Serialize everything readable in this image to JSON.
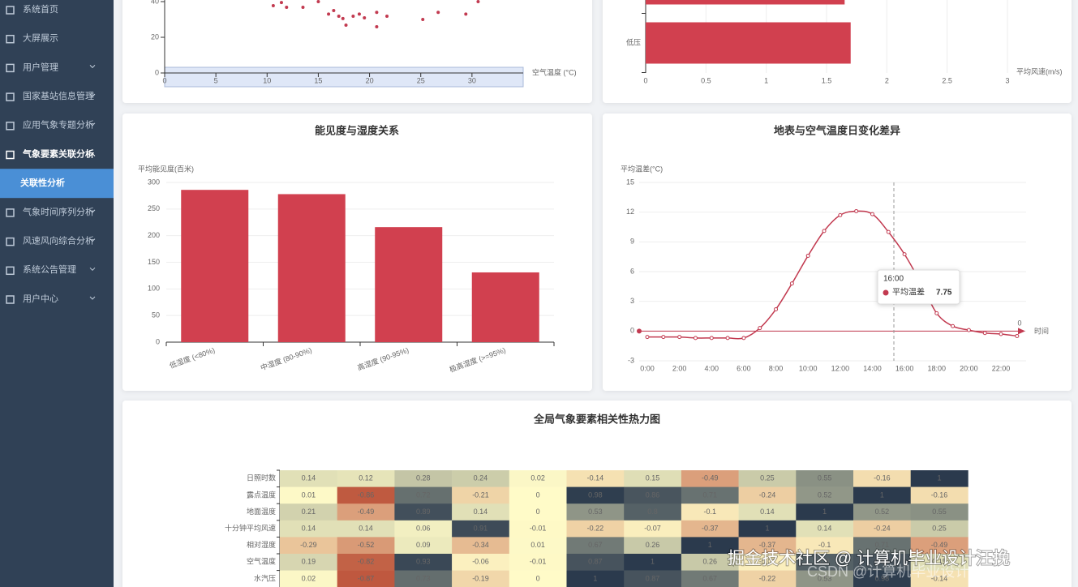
{
  "sidebar": {
    "menu": [
      {
        "label": "系统首页"
      },
      {
        "label": "大屏展示"
      },
      {
        "label": "用户管理",
        "arrow": true
      },
      {
        "label": "国家基站信息管理",
        "arrow": true
      },
      {
        "label": "应用气象专题分析",
        "arrow": true
      },
      {
        "label": "气象要素关联分析",
        "arrow": true,
        "open": true
      },
      {
        "label": "关联性分析",
        "sub": true,
        "active": true
      },
      {
        "label": "气象时间序列分析",
        "arrow": true
      },
      {
        "label": "风速风向综合分析",
        "arrow": true
      },
      {
        "label": "系统公告管理",
        "arrow": true
      },
      {
        "label": "用户中心",
        "arrow": true
      }
    ]
  },
  "chart_data": [
    {
      "type": "scatter",
      "x_label": "空气温度 (°C)",
      "color": "#c23a50",
      "x": [
        10.6,
        11.4,
        11.9,
        13.5,
        15,
        16,
        16.5,
        17,
        17.4,
        17.7,
        18.4,
        19,
        19.5,
        20.7,
        20.7,
        21.7,
        25.2,
        26.7,
        29.4,
        30.6
      ],
      "values": [
        37.7,
        39.5,
        36.8,
        36.8,
        40,
        33,
        35,
        31.8,
        30.5,
        26.8,
        31.8,
        33,
        30.9,
        34,
        25.9,
        31.8,
        30,
        34,
        33,
        40
      ],
      "xlim": [
        0,
        35
      ],
      "xticks": [
        0,
        5,
        10,
        15,
        20,
        25,
        30
      ],
      "ylim": [
        0,
        40
      ],
      "yticks": [
        0,
        20,
        40
      ]
    },
    {
      "type": "hbar",
      "x_label": "平均风速(m/s)",
      "color": "#d1404f",
      "categories": [
        "低压",
        null
      ],
      "values": [
        1.7,
        1.65
      ],
      "xlim": [
        0,
        3
      ],
      "xticks": [
        0,
        0.5,
        1,
        1.5,
        2,
        2.5,
        3
      ],
      "grid": true
    },
    {
      "type": "bar",
      "title": "能见度与湿度关系",
      "y_label": "平均能见度(百米)",
      "color": "#d1404f",
      "categories": [
        "低湿度 (<80%)",
        "中湿度 (80-90%)",
        "高湿度 (90-95%)",
        "极高湿度 (>=95%)"
      ],
      "values": [
        286,
        278,
        216,
        131
      ],
      "ylim": [
        0,
        300
      ],
      "yticks": [
        0,
        50,
        100,
        150,
        200,
        250,
        300
      ],
      "grid": true
    },
    {
      "type": "line",
      "title": "地表与空气温度日变化差异",
      "y_label": "平均温差(°C)",
      "x_label": "时间",
      "categories": [
        "0:00",
        null,
        "2:00",
        null,
        "4:00",
        null,
        "6:00",
        null,
        "8:00",
        null,
        "10:00",
        null,
        "12:00",
        null,
        "14:00",
        null,
        "16:00",
        null,
        "18:00",
        null,
        "20:00",
        null,
        "22:00",
        null
      ],
      "series": [
        {
          "name": "平均温差",
          "color": "#c23a50",
          "values": [
            -0.6,
            -0.6,
            -0.6,
            -0.7,
            -0.7,
            -0.7,
            -0.7,
            0.3,
            2.2,
            4.8,
            7.6,
            10.1,
            11.7,
            12.1,
            11.8,
            10,
            7.75,
            4.9,
            1.8,
            0.5,
            0.1,
            -0.2,
            -0.3,
            -0.5
          ]
        }
      ],
      "mark_line": 0,
      "tooltip_index": 16,
      "ylim": [
        -3,
        15
      ],
      "yticks": [
        -3,
        0,
        3,
        6,
        9,
        12,
        15
      ],
      "grid": true
    },
    {
      "type": "heatmap",
      "title": "全局气象要素相关性热力图",
      "y_categories": [
        "日照时数",
        "露点温度",
        "地面温度",
        "十分钟平均风速",
        "相对湿度",
        "空气温度",
        "水汽压"
      ],
      "values": [
        [
          0.14,
          0.12,
          0.28,
          0.24,
          0.02,
          -0.14,
          0.15,
          -0.49,
          0.25,
          0.55,
          -0.16,
          1
        ],
        [
          0.01,
          -0.86,
          0.72,
          -0.21,
          0,
          0.98,
          0.86,
          0.71,
          -0.24,
          0.52,
          1,
          -0.16
        ],
        [
          0.21,
          -0.49,
          0.89,
          0.14,
          0,
          0.53,
          0.8,
          -0.1,
          0.14,
          1,
          0.52,
          0.55
        ],
        [
          0.14,
          0.14,
          0.06,
          0.91,
          -0.01,
          -0.22,
          -0.07,
          -0.37,
          1,
          0.14,
          -0.24,
          0.25
        ],
        [
          -0.29,
          -0.52,
          0.09,
          -0.34,
          0.01,
          0.67,
          0.26,
          1,
          -0.37,
          -0.1,
          0.71,
          -0.49
        ],
        [
          0.19,
          -0.82,
          0.93,
          -0.06,
          -0.01,
          0.87,
          1,
          0.26,
          -0.07,
          0.8,
          0.86,
          0.15
        ],
        [
          0.02,
          -0.87,
          0.73,
          -0.19,
          0,
          1,
          0.87,
          0.67,
          -0.22,
          0.53,
          0.98,
          -0.14
        ]
      ],
      "value_range": [
        -1,
        1
      ],
      "color_scale": [
        "#b5402a",
        "#fffbc8",
        "#2b3a4d"
      ]
    }
  ],
  "watermark": [
    "CSDN @计算机毕业设计汪挽",
    "掘金技术社区 @ 计算机毕业设计汪挽"
  ]
}
